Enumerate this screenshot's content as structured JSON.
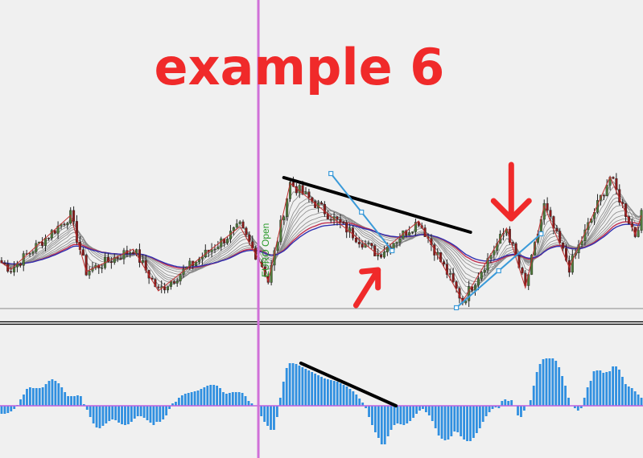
{
  "annotation_title": "example 6",
  "session_label": "EURO Open",
  "colors": {
    "background": "#f0f0f0",
    "bull_candle": "#4f7a3a",
    "bear_candle": "#8b1a1a",
    "zigzag": "#c03030",
    "session_line": "#d070d8",
    "histogram": "#2f8fe0",
    "zero_line": "#c060e0",
    "trendline": "#000000",
    "channel_line": "#3a9ad9",
    "arrow": "#f02a2a",
    "title": "#f02a2a"
  },
  "chart_data": [
    {
      "type": "candlestick",
      "panel": "price",
      "title": "",
      "bar_count": 205,
      "ylim": [
        0,
        230
      ],
      "zigzag_pivots": [
        {
          "bar": 0,
          "price": 58
        },
        {
          "bar": 3,
          "price": 50
        },
        {
          "bar": 22,
          "price": 117
        },
        {
          "bar": 27,
          "price": 47
        },
        {
          "bar": 42,
          "price": 75
        },
        {
          "bar": 50,
          "price": 23
        },
        {
          "bar": 76,
          "price": 103
        },
        {
          "bar": 83,
          "price": 55
        },
        {
          "bar": 85,
          "price": 35
        },
        {
          "bar": 92,
          "price": 157
        },
        {
          "bar": 120,
          "price": 68
        },
        {
          "bar": 133,
          "price": 110
        },
        {
          "bar": 147,
          "price": 10
        },
        {
          "bar": 161,
          "price": 101
        },
        {
          "bar": 167,
          "price": 27
        },
        {
          "bar": 173,
          "price": 129
        },
        {
          "bar": 181,
          "price": 52
        },
        {
          "bar": 194,
          "price": 165
        },
        {
          "bar": 202,
          "price": 93
        },
        {
          "bar": 204,
          "price": 117
        }
      ],
      "moving_average_ribbon_periods": [
        3,
        5,
        8,
        10,
        12,
        15,
        20,
        25,
        30,
        35,
        40
      ],
      "session_marker_bar": 82,
      "trendlines": [
        {
          "name": "resistance",
          "color": "#000000",
          "from": {
            "bar": 90,
            "price": 164
          },
          "to": {
            "bar": 149.5,
            "price": 96
          }
        },
        {
          "name": "channel-down",
          "color": "#3a9ad9",
          "from": {
            "bar": 105,
            "price": 169
          },
          "to": {
            "bar": 124.5,
            "price": 73
          }
        },
        {
          "name": "channel-up",
          "color": "#3a9ad9",
          "from": {
            "bar": 145,
            "price": 2
          },
          "to": {
            "bar": 172,
            "price": 94
          }
        }
      ],
      "arrows": [
        {
          "direction": "down",
          "bar": 162.5,
          "price_from": 180,
          "price_to": 113
        },
        {
          "direction": "up",
          "bar_from": 113,
          "bar_to": 120,
          "price_from": 5,
          "price_to": 49
        }
      ]
    },
    {
      "type": "histogram",
      "panel": "oscillator",
      "title": "",
      "zero_line": 0,
      "values": [
        -10,
        -10,
        -9,
        -7,
        -4,
        1,
        8,
        14,
        21,
        23,
        22,
        22,
        22,
        23,
        27,
        31,
        33,
        31,
        28,
        23,
        17,
        12,
        12,
        12,
        13,
        12,
        2,
        -5,
        -14,
        -22,
        -27,
        -28,
        -25,
        -22,
        -19,
        -17,
        -18,
        -21,
        -23,
        -24,
        -23,
        -20,
        -16,
        -13,
        -13,
        -15,
        -18,
        -21,
        -24,
        -20,
        -20,
        -17,
        -12,
        -4,
        3,
        5,
        10,
        13,
        15,
        16,
        17,
        18,
        19,
        21,
        23,
        25,
        26,
        26,
        25,
        22,
        17,
        15,
        16,
        17,
        17,
        17,
        16,
        12,
        6,
        3,
        0,
        0,
        -13,
        -20,
        -25,
        -30,
        -30,
        -14,
        10,
        30,
        47,
        53,
        53,
        52,
        50,
        48,
        46,
        44,
        42,
        40,
        38,
        36,
        34,
        33,
        32,
        31,
        30,
        28,
        26,
        24,
        21,
        18,
        14,
        9,
        4,
        -3,
        -14,
        -24,
        -33,
        -40,
        -48,
        -48,
        -38,
        -30,
        -24,
        -22,
        -23,
        -24,
        -22,
        -19,
        -15,
        -10,
        -6,
        -4,
        -8,
        -12,
        -19,
        -28,
        -37,
        -41,
        -43,
        -42,
        -38,
        -32,
        -33,
        -38,
        -42,
        -44,
        -44,
        -40,
        -34,
        -28,
        -20,
        -13,
        -8,
        -4,
        -2,
        -3,
        6,
        8,
        6,
        7,
        0,
        -12,
        -14,
        -6,
        0,
        7,
        25,
        42,
        52,
        58,
        59,
        59,
        59,
        56,
        48,
        37,
        25,
        10,
        0,
        -3,
        -6,
        -3,
        10,
        23,
        31,
        43,
        44,
        44,
        41,
        42,
        43,
        49,
        49,
        45,
        36,
        27,
        24,
        22,
        18,
        14,
        10
      ],
      "trendline": {
        "from_bar": 95,
        "from_value": 53,
        "to_bar": 125,
        "to_value": 0
      }
    }
  ]
}
